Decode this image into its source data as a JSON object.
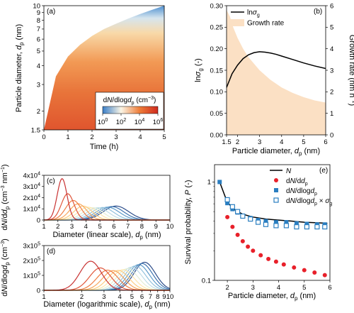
{
  "chart_data": [
    {
      "panel": "(a)",
      "type": "heatmap",
      "xlabel": "Time (h)",
      "ylabel": "Particle diameter, d_p (nm)",
      "xlim": [
        0,
        5
      ],
      "ylim": [
        1.5,
        10
      ],
      "xticks": [
        "0",
        "1",
        "2",
        "3",
        "4",
        "5"
      ],
      "yticks": [
        "1.5",
        "2",
        "3",
        "4",
        "5",
        "6",
        "7",
        "8",
        "9",
        "10"
      ],
      "colorbar": {
        "title": "dN/dlogd_p (cm^-3)",
        "ticks": [
          "10^0",
          "10^2",
          "10^4",
          "10^6"
        ],
        "colors": [
          "#3a7ec8",
          "#fbf6e6",
          "#ee7e3a",
          "#d02a1e"
        ]
      },
      "front": {
        "time": [
          0,
          0.5,
          1,
          1.5,
          2,
          2.5,
          3,
          3.5,
          4,
          4.5,
          5
        ],
        "dp": [
          1.5,
          3.4,
          4.6,
          5.5,
          6.3,
          7.0,
          7.6,
          8.2,
          8.8,
          9.4,
          10.0
        ]
      }
    },
    {
      "panel": "(b)",
      "type": "line",
      "xlabel": "Particle diameter, d_p (nm)",
      "ylabel": "ln σ_g (-)",
      "y2label": "Growth rate (nm h^-1)",
      "xlim": [
        1.5,
        6
      ],
      "ylim": [
        0,
        0.3
      ],
      "y2lim": [
        0,
        6
      ],
      "xticks": [
        "1.5",
        "2",
        "3",
        "4",
        "5",
        "6"
      ],
      "yticks": [
        "0.00",
        "0.05",
        "0.10",
        "0.15",
        "0.20",
        "0.25",
        "0.30"
      ],
      "y2ticks": [
        "0",
        "1",
        "2",
        "3",
        "4",
        "5",
        "6"
      ],
      "legend": [
        "ln σ_g",
        "Growth rate"
      ],
      "legend_position": "top-left",
      "series": [
        {
          "name": "ln σ_g",
          "axis": "left",
          "x": [
            1.5,
            1.75,
            2,
            2.25,
            2.5,
            2.75,
            3,
            3.25,
            3.5,
            3.75,
            4,
            4.5,
            5,
            5.5,
            6
          ],
          "y": [
            0.11,
            0.142,
            0.162,
            0.177,
            0.186,
            0.191,
            0.193,
            0.192,
            0.19,
            0.187,
            0.183,
            0.175,
            0.167,
            0.16,
            0.154
          ],
          "color": "#000000"
        },
        {
          "name": "Growth rate",
          "axis": "right",
          "type": "area",
          "x": [
            1.5,
            1.65,
            1.8,
            2,
            2.25,
            2.5,
            2.75,
            3,
            3.5,
            4,
            4.5,
            5,
            5.5,
            6
          ],
          "y": [
            5.8,
            5.5,
            5.0,
            4.5,
            4.0,
            3.6,
            3.3,
            3.0,
            2.55,
            2.2,
            1.95,
            1.75,
            1.6,
            1.5
          ],
          "color": "#fbe0c4"
        }
      ]
    },
    {
      "panel": "(c)",
      "type": "line",
      "xlabel": "Diameter (linear scale), d_p (nm)",
      "ylabel": "dN/dd_p (cm^-3 nm^-1)",
      "xlim": [
        1,
        10
      ],
      "ylim": [
        0,
        40000
      ],
      "xticks": [
        "1",
        "2",
        "3",
        "4",
        "5",
        "6",
        "7",
        "8",
        "9",
        "10"
      ],
      "yticks": [
        "0",
        "1x10^4",
        "2x10^4",
        "3x10^4",
        "4x10^4"
      ],
      "series": [
        {
          "center": 2.3,
          "peak": 37000,
          "width": 0.35,
          "color": "#c83232"
        },
        {
          "center": 2.7,
          "peak": 23500,
          "width": 0.45,
          "color": "#e0553a"
        },
        {
          "center": 3.1,
          "peak": 17500,
          "width": 0.55,
          "color": "#ef7d43"
        },
        {
          "center": 3.45,
          "peak": 14500,
          "width": 0.6,
          "color": "#f7a65a"
        },
        {
          "center": 3.8,
          "peak": 12500,
          "width": 0.65,
          "color": "#fccd82"
        },
        {
          "center": 4.15,
          "peak": 11500,
          "width": 0.7,
          "color": "#fde6ad"
        },
        {
          "center": 4.5,
          "peak": 11000,
          "width": 0.74,
          "color": "#e3eed4"
        },
        {
          "center": 4.85,
          "peak": 11000,
          "width": 0.78,
          "color": "#bfdde6"
        },
        {
          "center": 5.2,
          "peak": 11200,
          "width": 0.8,
          "color": "#92c2dd"
        },
        {
          "center": 5.55,
          "peak": 11500,
          "width": 0.84,
          "color": "#5f9cca"
        },
        {
          "center": 5.85,
          "peak": 12000,
          "width": 0.86,
          "color": "#3f74b0"
        },
        {
          "center": 6.15,
          "peak": 12500,
          "width": 0.9,
          "color": "#2c4d8a"
        }
      ]
    },
    {
      "panel": "(d)",
      "type": "line",
      "xlabel": "Diameter (logarithmic scale), d_p (nm)",
      "ylabel": "dN/dlogd_p (cm^-3)",
      "xscale": "log",
      "xlim": [
        1,
        10
      ],
      "ylim": [
        0,
        300000
      ],
      "xticks": [
        "1",
        "2",
        "3",
        "4",
        "5",
        "6",
        "7",
        "8",
        "9",
        "10"
      ],
      "yticks": [
        "0",
        "1x10^5",
        "2x10^5",
        "3x10^5"
      ],
      "series": [
        {
          "center": 2.35,
          "peak": 195000,
          "color": "#c83232"
        },
        {
          "center": 2.8,
          "peak": 150000,
          "color": "#e0553a"
        },
        {
          "center": 3.2,
          "peak": 135000,
          "color": "#ef7d43"
        },
        {
          "center": 3.55,
          "peak": 132000,
          "color": "#f7a65a"
        },
        {
          "center": 3.9,
          "peak": 133000,
          "color": "#fccd82"
        },
        {
          "center": 4.25,
          "peak": 138000,
          "color": "#fde6ad"
        },
        {
          "center": 4.6,
          "peak": 145000,
          "color": "#e3eed4"
        },
        {
          "center": 4.95,
          "peak": 155000,
          "color": "#bfdde6"
        },
        {
          "center": 5.3,
          "peak": 163000,
          "color": "#92c2dd"
        },
        {
          "center": 5.65,
          "peak": 172000,
          "color": "#5f9cca"
        },
        {
          "center": 6.0,
          "peak": 180000,
          "color": "#3f74b0"
        },
        {
          "center": 6.3,
          "peak": 188000,
          "color": "#2c4d8a"
        }
      ]
    },
    {
      "panel": "(e)",
      "type": "scatter",
      "xlabel": "Particle diameter, d_p (nm)",
      "ylabel": "Survival probability, P (-)",
      "yscale": "log",
      "xlim": [
        1.5,
        6
      ],
      "ylim": [
        0.1,
        1.5
      ],
      "xticks": [
        "2",
        "3",
        "4",
        "5",
        "6"
      ],
      "yticks": [
        "0.1",
        "1"
      ],
      "legend": [
        "N",
        "dN/dd_p",
        "dN/dlogd_p",
        "dN/dlogd_p × σ_g"
      ],
      "legend_position": "top-right",
      "series": [
        {
          "name": "N",
          "marker": "line",
          "color": "#000000",
          "x": [
            1.7,
            2.0,
            2.3,
            2.6,
            3.0,
            3.5,
            4.0,
            4.5,
            5.0,
            5.5,
            5.9
          ],
          "y": [
            1.0,
            0.62,
            0.52,
            0.47,
            0.44,
            0.42,
            0.41,
            0.4,
            0.39,
            0.385,
            0.38
          ]
        },
        {
          "name": "dN/dd_p",
          "marker": "circle",
          "color": "#e8202a",
          "x": [
            2.0,
            2.2,
            2.4,
            2.6,
            2.8,
            3.0,
            3.3,
            3.6,
            3.9,
            4.2,
            4.6,
            5.0,
            5.4,
            5.8
          ],
          "y": [
            0.44,
            0.35,
            0.29,
            0.25,
            0.22,
            0.2,
            0.18,
            0.165,
            0.155,
            0.145,
            0.135,
            0.127,
            0.12,
            0.113
          ]
        },
        {
          "name": "dN/dlogd_p",
          "marker": "square",
          "color": "#2a7ec0",
          "x": [
            1.7,
            2.0,
            2.2,
            2.4,
            2.6,
            2.9,
            3.2,
            3.5,
            3.9,
            4.3,
            4.7,
            5.1,
            5.5,
            5.8
          ],
          "y": [
            1.0,
            0.61,
            0.53,
            0.49,
            0.45,
            0.43,
            0.41,
            0.4,
            0.39,
            0.39,
            0.38,
            0.375,
            0.37,
            0.37
          ]
        },
        {
          "name": "dN/dlogd_p × σ_g",
          "marker": "open-square",
          "color": "#2a7ec0",
          "x": [
            2.0,
            2.2,
            2.4,
            2.6,
            2.9,
            3.2,
            3.5,
            3.9,
            4.3,
            4.7,
            5.1,
            5.5,
            5.8
          ],
          "y": [
            0.66,
            0.56,
            0.5,
            0.45,
            0.42,
            0.39,
            0.37,
            0.36,
            0.36,
            0.35,
            0.35,
            0.35,
            0.35
          ]
        }
      ]
    }
  ]
}
